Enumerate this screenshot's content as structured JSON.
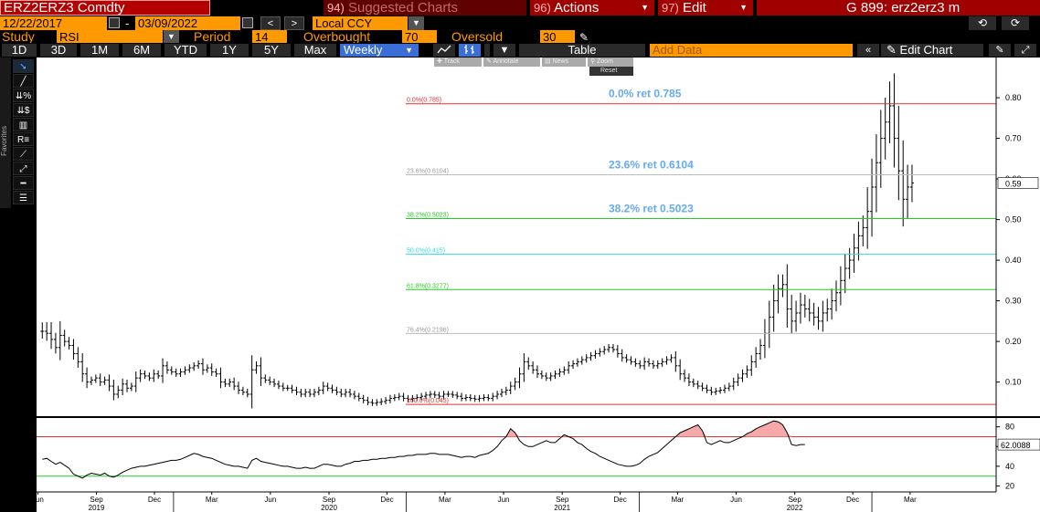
{
  "header": {
    "ticker": "ERZ2ERZ3 Comdty",
    "suggested_num": "94)",
    "suggested_label": "Suggested Charts",
    "actions_num": "96)",
    "actions_label": "Actions",
    "edit_num": "97)",
    "edit_label": "Edit",
    "gtitle": "G 899: erz2erz3 m"
  },
  "range_bar": {
    "start_date": "12/22/2017",
    "end_date": "03/09/2022",
    "prev": "<",
    "next": ">",
    "currency": "Local CCY",
    "dash": "-"
  },
  "study_bar": {
    "study_label": "Study",
    "study_value": "RSI",
    "period_label": "Period",
    "period_value": "14",
    "overbought_label": "Overbought",
    "overbought_value": "70",
    "oversold_label": "Oversold",
    "oversold_value": "30"
  },
  "period_buttons": [
    "1D",
    "3D",
    "1M",
    "6M",
    "YTD",
    "1Y",
    "5Y",
    "Max"
  ],
  "frequency": "Weekly",
  "table_label": "Table",
  "add_data_placeholder": "Add Data",
  "edit_chart_label": "Edit Chart",
  "favorites_label": "Favorites",
  "chart_toolbar": {
    "track": "Track",
    "annotate": "Annotate",
    "news": "News",
    "zoom": "Zoom",
    "reset": "Reset"
  },
  "colors": {
    "accent_orange": "#ff9900",
    "header_red": "#a00000",
    "fib_red": "#e03030",
    "fib_green": "#22cc22",
    "fib_cyan": "#33dddd",
    "fib_gray": "#bbbbbb",
    "annotation_blue": "#66aaee"
  },
  "chart_data": [
    {
      "type": "ohlc-bar",
      "title": "",
      "y_ticks": [
        0.1,
        0.2,
        0.3,
        0.4,
        0.5,
        0.6,
        0.7,
        0.8
      ],
      "y_tick_labels": [
        "0.10",
        "0.20",
        "0.30",
        "0.40",
        "0.50",
        "0.60",
        "0.70",
        "0.80"
      ],
      "ylim": [
        0.025,
        0.89
      ],
      "last_value": "0.59",
      "x": [
        "2018-06-08",
        "2018-06-15",
        "2018-06-22",
        "2018-06-29",
        "2018-07-06",
        "2018-07-13",
        "2018-07-20",
        "2018-07-27",
        "2018-08-03",
        "2018-08-10",
        "2018-08-17",
        "2018-08-24",
        "2018-08-31",
        "2018-09-07",
        "2018-09-14",
        "2018-09-21",
        "2018-09-28",
        "2018-10-05",
        "2018-10-12",
        "2018-10-19",
        "2018-10-26",
        "2018-11-02",
        "2018-11-09",
        "2018-11-16",
        "2018-11-23",
        "2018-11-30",
        "2018-12-07",
        "2018-12-14",
        "2018-12-21",
        "2018-12-28",
        "2019-01-04",
        "2019-01-11",
        "2019-01-18",
        "2019-01-25",
        "2019-02-01",
        "2019-02-08",
        "2019-02-15",
        "2019-02-22",
        "2019-03-01",
        "2019-03-08",
        "2019-03-15",
        "2019-03-22",
        "2019-03-29",
        "2019-04-05",
        "2019-04-12",
        "2019-04-19",
        "2019-04-26",
        "2019-05-03",
        "2019-05-10",
        "2019-05-17",
        "2019-05-24",
        "2019-05-31",
        "2019-06-07",
        "2019-06-14",
        "2019-06-21",
        "2019-06-28",
        "2019-07-05",
        "2019-07-12",
        "2019-07-19",
        "2019-07-26",
        "2019-08-02",
        "2019-08-09",
        "2019-08-16",
        "2019-08-23",
        "2019-08-30",
        "2019-09-06",
        "2019-09-13",
        "2019-09-20",
        "2019-09-27",
        "2019-10-04",
        "2019-10-11",
        "2019-10-18",
        "2019-10-25",
        "2019-11-01",
        "2019-11-08",
        "2019-11-15",
        "2019-11-22",
        "2019-11-29",
        "2019-12-06",
        "2019-12-13",
        "2019-12-20",
        "2019-12-27",
        "2020-01-03",
        "2020-01-10",
        "2020-01-17",
        "2020-01-24",
        "2020-01-31",
        "2020-02-07",
        "2020-02-14",
        "2020-02-21",
        "2020-02-28",
        "2020-03-06",
        "2020-03-13",
        "2020-03-20",
        "2020-03-27",
        "2020-04-03",
        "2020-04-10",
        "2020-04-17",
        "2020-04-24",
        "2020-05-01",
        "2020-05-08",
        "2020-05-15",
        "2020-05-22",
        "2020-05-29",
        "2020-06-05",
        "2020-06-12",
        "2020-06-19",
        "2020-06-26",
        "2020-07-03",
        "2020-07-10",
        "2020-07-17",
        "2020-07-24",
        "2020-07-31",
        "2020-08-07",
        "2020-08-14",
        "2020-08-21",
        "2020-08-28",
        "2020-09-04",
        "2020-09-11",
        "2020-09-18",
        "2020-09-25",
        "2020-10-02",
        "2020-10-09",
        "2020-10-16",
        "2020-10-23",
        "2020-10-30",
        "2020-11-06",
        "2020-11-13",
        "2020-11-20",
        "2020-11-27",
        "2020-12-04",
        "2020-12-11",
        "2020-12-18",
        "2020-12-25",
        "2021-01-01",
        "2021-01-08",
        "2021-01-15",
        "2021-01-22",
        "2021-01-29",
        "2021-02-05",
        "2021-02-12",
        "2021-02-19",
        "2021-02-26",
        "2021-03-05",
        "2021-03-12",
        "2021-03-19",
        "2021-03-26",
        "2021-04-02",
        "2021-04-09",
        "2021-04-16",
        "2021-04-23",
        "2021-04-30",
        "2021-05-07",
        "2021-05-14",
        "2021-05-21",
        "2021-05-28",
        "2021-06-04",
        "2021-06-11",
        "2021-06-18",
        "2021-06-25",
        "2021-07-02",
        "2021-07-09",
        "2021-07-16",
        "2021-07-23",
        "2021-07-30",
        "2021-08-06",
        "2021-08-13",
        "2021-08-20",
        "2021-08-27",
        "2021-09-03",
        "2021-09-10",
        "2021-09-17",
        "2021-09-24",
        "2021-10-01",
        "2021-10-08",
        "2021-10-15",
        "2021-10-22",
        "2021-10-29",
        "2021-11-05",
        "2021-11-12",
        "2021-11-19",
        "2021-11-26",
        "2021-12-03",
        "2021-12-10",
        "2021-12-17",
        "2021-12-24",
        "2021-12-31",
        "2022-01-07",
        "2022-01-14",
        "2022-01-21",
        "2022-01-28",
        "2022-02-04",
        "2022-02-11",
        "2022-02-18",
        "2022-02-25",
        "2022-03-04"
      ],
      "close": [
        0.225,
        0.22,
        0.205,
        0.185,
        0.215,
        0.2,
        0.19,
        0.17,
        0.15,
        0.12,
        0.1,
        0.105,
        0.11,
        0.1,
        0.105,
        0.09,
        0.07,
        0.08,
        0.095,
        0.085,
        0.09,
        0.11,
        0.12,
        0.115,
        0.11,
        0.12,
        0.115,
        0.14,
        0.13,
        0.125,
        0.12,
        0.125,
        0.13,
        0.135,
        0.14,
        0.145,
        0.13,
        0.135,
        0.125,
        0.12,
        0.1,
        0.095,
        0.1,
        0.09,
        0.08,
        0.075,
        0.07,
        0.13,
        0.14,
        0.11,
        0.105,
        0.1,
        0.095,
        0.09,
        0.085,
        0.085,
        0.08,
        0.075,
        0.07,
        0.075,
        0.07,
        0.075,
        0.08,
        0.09,
        0.085,
        0.08,
        0.075,
        0.07,
        0.075,
        0.07,
        0.065,
        0.06,
        0.055,
        0.05,
        0.048,
        0.05,
        0.052,
        0.055,
        0.06,
        0.062,
        0.065,
        0.06,
        0.058,
        0.06,
        0.062,
        0.065,
        0.068,
        0.07,
        0.068,
        0.065,
        0.07,
        0.07,
        0.068,
        0.065,
        0.06,
        0.062,
        0.06,
        0.058,
        0.06,
        0.062,
        0.06,
        0.065,
        0.07,
        0.075,
        0.08,
        0.09,
        0.1,
        0.12,
        0.15,
        0.14,
        0.13,
        0.12,
        0.115,
        0.11,
        0.115,
        0.12,
        0.125,
        0.13,
        0.14,
        0.145,
        0.15,
        0.155,
        0.16,
        0.165,
        0.17,
        0.175,
        0.18,
        0.185,
        0.18,
        0.17,
        0.16,
        0.155,
        0.15,
        0.145,
        0.14,
        0.15,
        0.145,
        0.14,
        0.145,
        0.15,
        0.155,
        0.16,
        0.14,
        0.12,
        0.11,
        0.1,
        0.095,
        0.09,
        0.085,
        0.08,
        0.075,
        0.078,
        0.08,
        0.085,
        0.09,
        0.1,
        0.11,
        0.12,
        0.13,
        0.15,
        0.17,
        0.19,
        0.22,
        0.26,
        0.3,
        0.33,
        0.34,
        0.28,
        0.25,
        0.27,
        0.29,
        0.28,
        0.27,
        0.26,
        0.25,
        0.27,
        0.28,
        0.3,
        0.32,
        0.35,
        0.38,
        0.4,
        0.43,
        0.46,
        0.48,
        0.52,
        0.58,
        0.64,
        0.7,
        0.74,
        0.78,
        0.7,
        0.62,
        0.55,
        0.58,
        0.59
      ],
      "annotations": [
        "0.0% ret 0.785",
        "23.6% ret 0.6104",
        "38.2% ret 0.5023"
      ]
    },
    {
      "type": "line",
      "title": "",
      "y_ticks": [
        20,
        40,
        60,
        80
      ],
      "y_tick_labels": [
        "20",
        "40",
        "60",
        "80"
      ],
      "ylim": [
        14,
        88
      ],
      "last_value": "62.0088",
      "overbought": 70,
      "oversold": 30,
      "x_month_labels": [
        "Jun",
        "Sep",
        "Dec",
        "Mar",
        "Jun",
        "Sep",
        "Dec",
        "Mar",
        "Jun",
        "Sep",
        "Dec",
        "Mar"
      ],
      "x_month_dates": [
        "2018-06-01",
        "2018-09-01",
        "2018-12-01",
        "2019-03-01",
        "2019-06-01",
        "2019-09-01",
        "2019-12-01",
        "2020-03-01",
        "2020-06-01",
        "2020-09-01",
        "2020-12-01",
        "2021-03-01"
      ],
      "x_year_labels": [
        "2019",
        "2020",
        "2021",
        "2022"
      ],
      "x_year_dates": [
        "2018-09-01",
        "2019-09-01",
        "2020-09-01",
        "2021-09-01"
      ],
      "x_year_dividers": [
        "2018-12-31",
        "2019-12-31",
        "2020-12-31",
        "2021-12-31"
      ],
      "rsi": [
        47,
        48,
        45,
        42,
        44,
        41,
        38,
        32,
        30,
        28,
        31,
        33,
        32,
        31,
        33,
        30,
        29,
        31,
        34,
        36,
        38,
        39,
        40,
        40,
        41,
        42,
        43,
        44,
        45,
        46,
        46,
        47,
        49,
        51,
        53,
        52,
        50,
        49,
        48,
        46,
        44,
        42,
        41,
        40,
        40,
        39,
        38,
        46,
        48,
        45,
        44,
        43,
        42,
        41,
        40,
        40,
        39,
        38,
        38,
        39,
        38,
        38,
        40,
        42,
        42,
        41,
        40,
        40,
        42,
        43,
        45,
        45,
        46,
        46,
        47,
        47,
        48,
        48,
        49,
        49,
        50,
        50,
        51,
        51,
        52,
        52,
        52,
        53,
        53,
        52,
        52,
        52,
        51,
        50,
        49,
        50,
        50,
        49,
        51,
        52,
        53,
        56,
        60,
        66,
        70,
        78,
        74,
        66,
        62,
        60,
        60,
        62,
        64,
        66,
        64,
        64,
        68,
        72,
        70,
        68,
        64,
        62,
        58,
        55,
        53,
        50,
        48,
        46,
        44,
        42,
        41,
        40,
        40,
        41,
        43,
        47,
        50,
        52,
        54,
        58,
        62,
        66,
        70,
        74,
        76,
        78,
        80,
        82,
        76,
        64,
        62,
        64,
        66,
        64,
        64,
        66,
        68,
        70,
        73,
        75,
        78,
        80,
        82,
        84,
        86,
        85,
        82,
        74,
        62,
        61,
        62,
        62
      ]
    }
  ]
}
